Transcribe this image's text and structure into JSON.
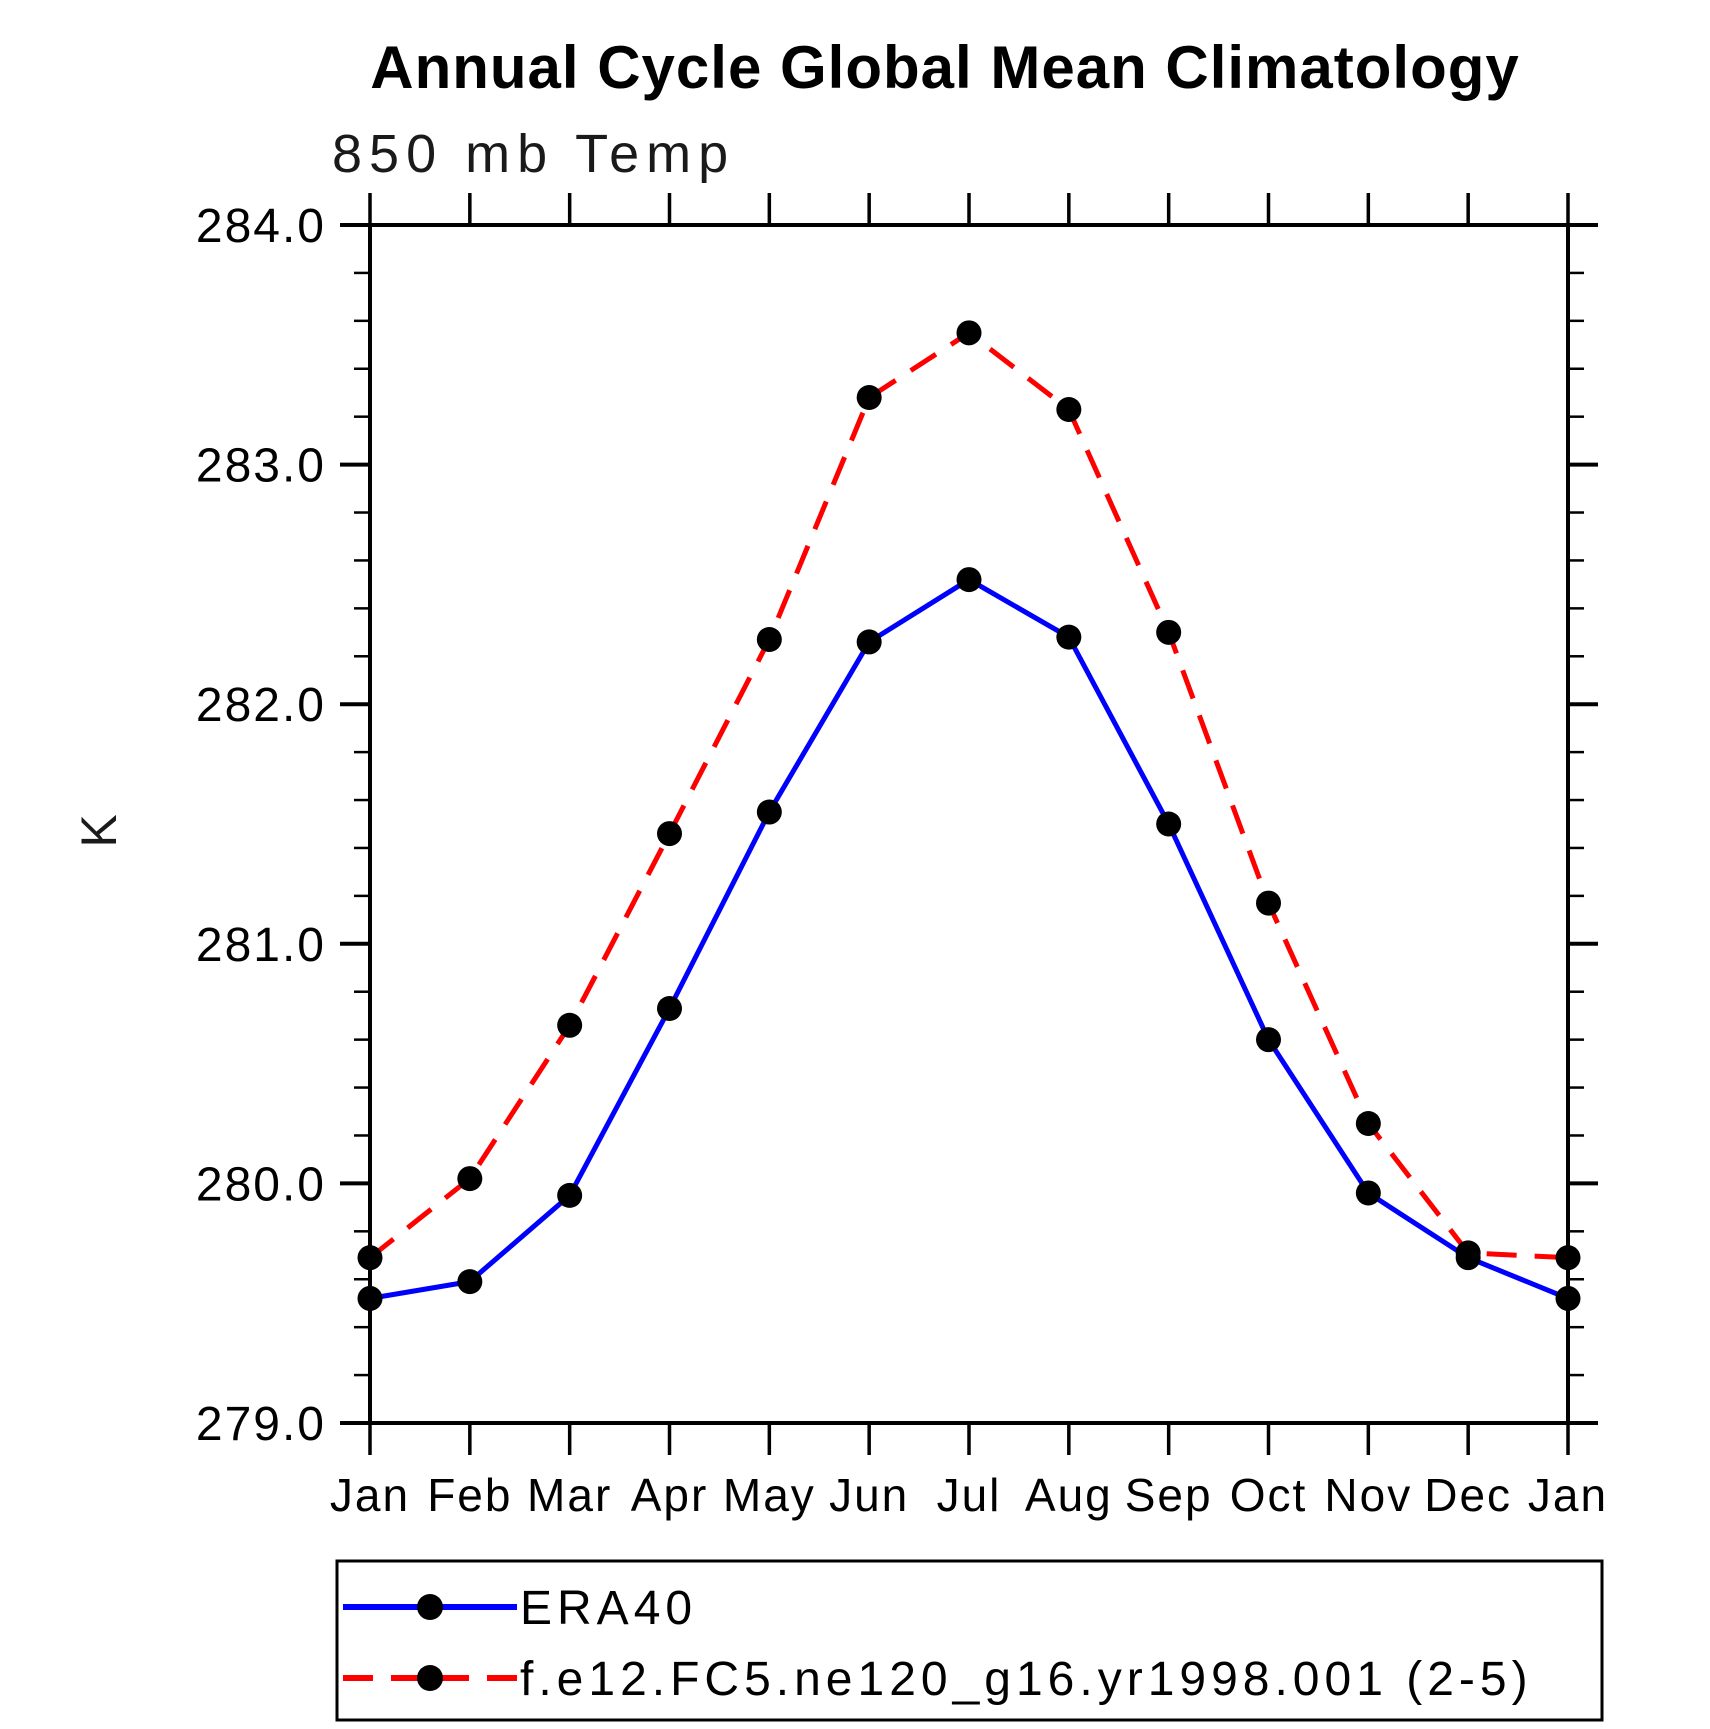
{
  "title": "Annual Cycle Global Mean Climatology",
  "subtitle": "850 mb Temp",
  "chart_data": {
    "type": "line",
    "title": "Annual Cycle Global Mean Climatology",
    "subtitle": "850 mb Temp",
    "ylabel": "K",
    "xlabel": "",
    "categories": [
      "Jan",
      "Feb",
      "Mar",
      "Apr",
      "May",
      "Jun",
      "Jul",
      "Aug",
      "Sep",
      "Oct",
      "Nov",
      "Dec",
      "Jan"
    ],
    "series": [
      {
        "name": "ERA40",
        "line_color": "#0000ff",
        "line_style": "solid",
        "marker": "filled-circle",
        "marker_color": "#000000",
        "values": [
          279.52,
          279.59,
          279.95,
          280.73,
          281.55,
          282.26,
          282.52,
          282.28,
          281.5,
          280.6,
          279.96,
          279.69,
          279.52
        ]
      },
      {
        "name": "f.e12.FC5.ne120_g16.yr1998.001 (2-5)",
        "line_color": "#ff0000",
        "line_style": "dashed",
        "marker": "filled-circle",
        "marker_color": "#000000",
        "values": [
          279.69,
          280.02,
          280.66,
          281.46,
          282.27,
          283.28,
          283.55,
          283.23,
          282.3,
          281.17,
          280.25,
          279.71,
          279.69
        ]
      }
    ],
    "ylim": [
      279.0,
      284.0
    ],
    "ytick_major": 1.0,
    "ytick_minor": 0.2,
    "ytick_labels": [
      "279.0",
      "280.0",
      "281.0",
      "282.0",
      "283.0",
      "284.0"
    ],
    "grid": false,
    "legend_position": "below-plot-boxed",
    "axis_color": "#000000",
    "tick_direction": "out"
  }
}
